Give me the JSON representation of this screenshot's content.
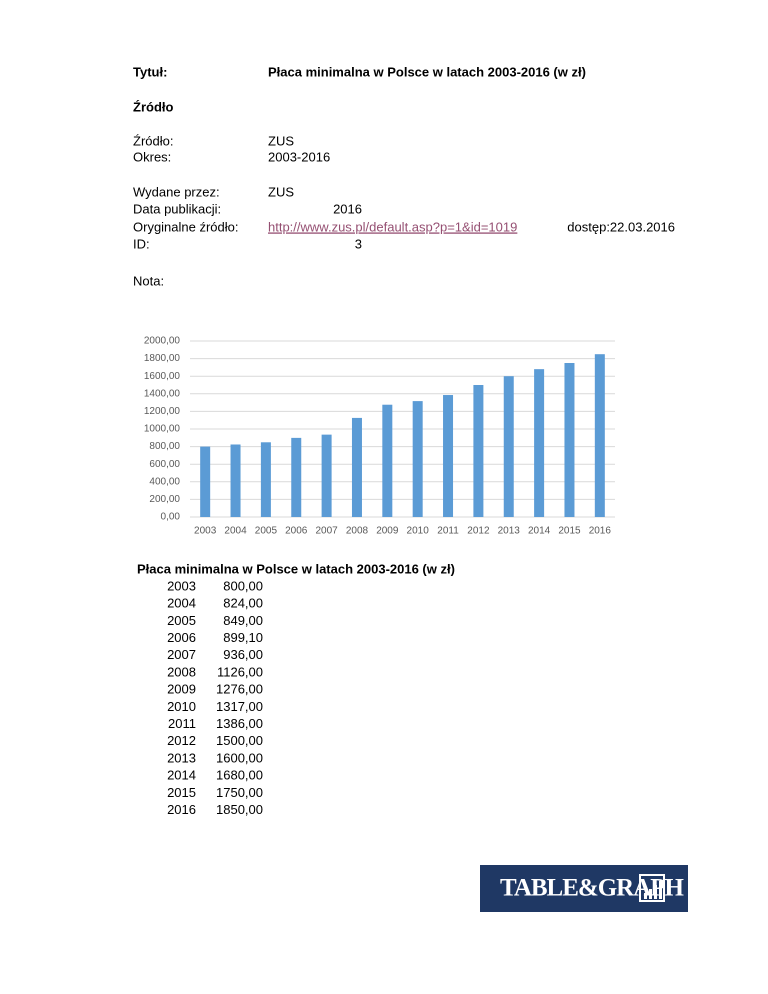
{
  "header": {
    "title_label": "Tytuł:",
    "title": "Płaca minimalna w Polsce w latach 2003-2016 (w zł)",
    "section": "Źródło"
  },
  "meta": {
    "source_label": "Źródło:",
    "source": "ZUS",
    "period_label": "Okres:",
    "period": "2003-2016",
    "publisher_label": "Wydane przez:",
    "publisher": "ZUS",
    "pubdate_label": "Data publikacji:",
    "pubdate": "2016",
    "origin_label": "Oryginalne źródło:",
    "origin_url": "http://www.zus.pl/default.asp?p=1&id=1019",
    "access": "dostęp:22.03.2016",
    "id_label": "ID:",
    "id": "3",
    "note_label": "Nota:"
  },
  "chart_data": {
    "type": "bar",
    "categories": [
      "2003",
      "2004",
      "2005",
      "2006",
      "2007",
      "2008",
      "2009",
      "2010",
      "2011",
      "2012",
      "2013",
      "2014",
      "2015",
      "2016"
    ],
    "values": [
      800,
      824,
      849,
      899.1,
      936,
      1126,
      1276,
      1317,
      1386,
      1500,
      1600,
      1680,
      1750,
      1850
    ],
    "color": "#5b9bd5",
    "ylim": [
      0,
      2000
    ],
    "yticks": [
      {
        "value": 0,
        "label": "0,00"
      },
      {
        "value": 200,
        "label": "200,00"
      },
      {
        "value": 400,
        "label": "400,00"
      },
      {
        "value": 600,
        "label": "600,00"
      },
      {
        "value": 800,
        "label": "800,00"
      },
      {
        "value": 1000,
        "label": "1000,00"
      },
      {
        "value": 1200,
        "label": "1200,00"
      },
      {
        "value": 1400,
        "label": "1400,00"
      },
      {
        "value": 1600,
        "label": "1600,00"
      },
      {
        "value": 1800,
        "label": "1800,00"
      },
      {
        "value": 2000,
        "label": "2000,00"
      }
    ],
    "grid": true
  },
  "table": {
    "title": "Płaca minimalna w Polsce w latach 2003-2016 (w zł)",
    "rows": [
      [
        "2003",
        "800,00"
      ],
      [
        "2004",
        "824,00"
      ],
      [
        "2005",
        "849,00"
      ],
      [
        "2006",
        "899,10"
      ],
      [
        "2007",
        "936,00"
      ],
      [
        "2008",
        "1126,00"
      ],
      [
        "2009",
        "1276,00"
      ],
      [
        "2010",
        "1317,00"
      ],
      [
        "2011",
        "1386,00"
      ],
      [
        "2012",
        "1500,00"
      ],
      [
        "2013",
        "1600,00"
      ],
      [
        "2014",
        "1680,00"
      ],
      [
        "2015",
        "1750,00"
      ],
      [
        "2016",
        "1850,00"
      ]
    ]
  },
  "logo": "TABLE&GRAPH"
}
